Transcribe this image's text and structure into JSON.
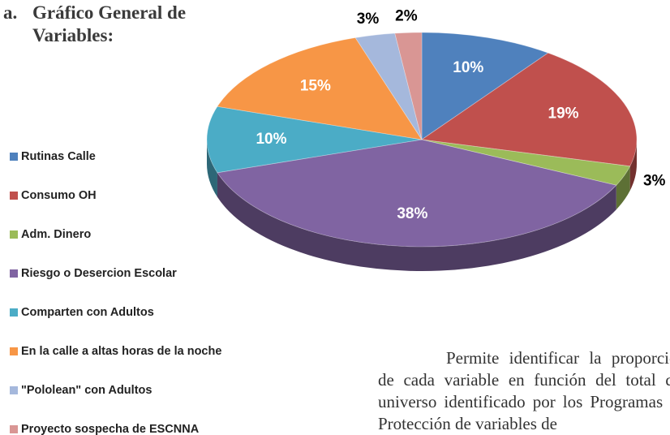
{
  "heading": {
    "marker": "a.",
    "title": "Gráfico General de Variables:"
  },
  "chart_data": {
    "type": "pie",
    "categories": [
      "Rutinas Calle",
      "Consumo OH",
      "Adm. Dinero",
      "Riesgo o Desercion Escolar",
      "Comparten con Adultos",
      "En la calle a altas horas de la noche",
      "\"Pololean\" con Adultos",
      "Proyecto sospecha de ESCNNA"
    ],
    "values": [
      10,
      19,
      3,
      38,
      10,
      15,
      3,
      2
    ],
    "value_labels": [
      "10%",
      "19%",
      "3%",
      "38%",
      "10%",
      "15%",
      "3%",
      "2%"
    ],
    "colors": [
      "#4f81bd",
      "#c0504d",
      "#9bbb59",
      "#8064a2",
      "#4bacc6",
      "#f79646",
      "#a5b8dc",
      "#d99694"
    ],
    "legend": "left"
  },
  "paragraph": "Permite identificar la proporción de cada variable en función del total del universo identificado por los Programas de Protección de variables de"
}
